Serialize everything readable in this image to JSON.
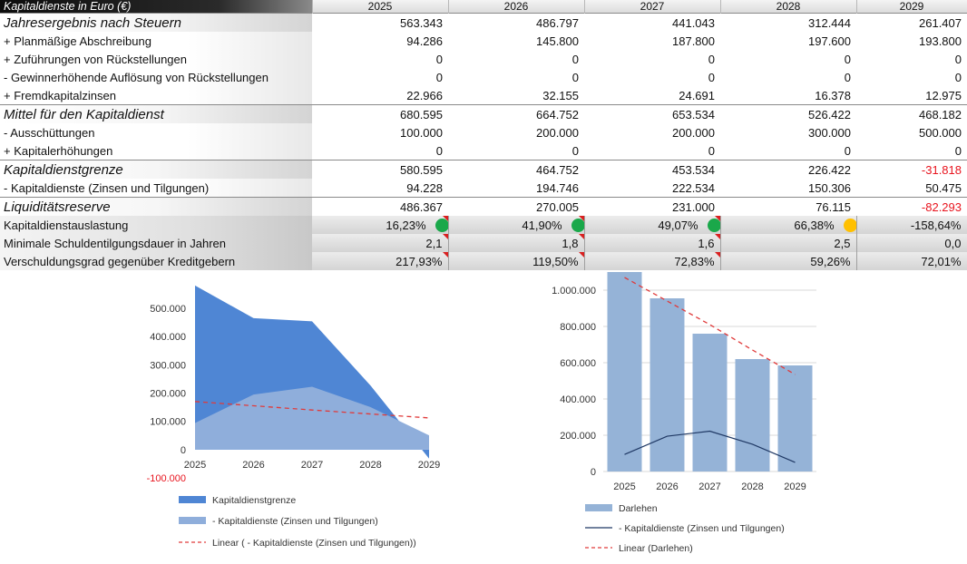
{
  "table": {
    "title": "Kapitaldienste in Euro (€)",
    "years": [
      "2025",
      "2026",
      "2027",
      "2028",
      "2029"
    ],
    "rows": [
      {
        "label": "Jahresergebnis nach Steuern",
        "values": [
          "563.343",
          "486.797",
          "441.043",
          "312.444",
          "261.407"
        ],
        "style": "major"
      },
      {
        "label": " + Planmäßige Abschreibung",
        "values": [
          "94.286",
          "145.800",
          "187.800",
          "197.600",
          "193.800"
        ],
        "style": "sub"
      },
      {
        "label": " + Zuführungen von Rückstellungen",
        "values": [
          "0",
          "0",
          "0",
          "0",
          "0"
        ],
        "style": "sub"
      },
      {
        "label": " - Gewinnerhöhende Auflösung von Rückstellungen",
        "values": [
          "0",
          "0",
          "0",
          "0",
          "0"
        ],
        "style": "sub"
      },
      {
        "label": " + Fremdkapitalzinsen",
        "values": [
          "22.966",
          "32.155",
          "24.691",
          "16.378",
          "12.975"
        ],
        "style": "sub"
      },
      {
        "label": "Mittel für den Kapitaldienst",
        "values": [
          "680.595",
          "664.752",
          "653.534",
          "526.422",
          "468.182"
        ],
        "style": "major"
      },
      {
        "label": " - Ausschüttungen",
        "values": [
          "100.000",
          "200.000",
          "200.000",
          "300.000",
          "500.000"
        ],
        "style": "sub"
      },
      {
        "label": " + Kapitalerhöhungen",
        "values": [
          "0",
          "0",
          "0",
          "0",
          "0"
        ],
        "style": "sub"
      },
      {
        "label": "Kapitaldienstgrenze",
        "values": [
          "580.595",
          "464.752",
          "453.534",
          "226.422",
          "-31.818"
        ],
        "style": "major",
        "negIdx": [
          4
        ]
      },
      {
        "label": " - Kapitaldienste (Zinsen und Tilgungen)",
        "values": [
          "94.228",
          "194.746",
          "222.534",
          "150.306",
          "50.475"
        ],
        "style": "sub"
      },
      {
        "label": "Liquiditätsreserve",
        "values": [
          "486.367",
          "270.005",
          "231.000",
          "76.115",
          "-82.293"
        ],
        "style": "major",
        "negIdx": [
          4
        ]
      },
      {
        "label": "Kapitaldienstauslastung",
        "values": [
          "16,23%",
          "41,90%",
          "49,07%",
          "66,38%",
          "-158,64%"
        ],
        "style": "shade",
        "dots": [
          "#1aa84a",
          "#1aa84a",
          "#1aa84a",
          "#ffc000",
          ""
        ],
        "flag": true
      },
      {
        "label": "Minimale Schuldentilgungsdauer in Jahren",
        "values": [
          "2,1",
          "1,8",
          "1,6",
          "2,5",
          "0,0"
        ],
        "style": "shade",
        "flag": true
      },
      {
        "label": "Verschuldungsgrad gegenüber Kreditgebern",
        "values": [
          "217,93%",
          "119,50%",
          "72,83%",
          "59,26%",
          "72,01%"
        ],
        "style": "shade",
        "flag": true
      }
    ]
  },
  "chart_data": [
    {
      "type": "area",
      "categories": [
        "2025",
        "2026",
        "2027",
        "2028",
        "2029"
      ],
      "series": [
        {
          "name": "Kapitaldienstgrenze",
          "values": [
            580595,
            464752,
            453534,
            226422,
            -31818
          ],
          "color": "#4f86d4"
        },
        {
          "name": " - Kapitaldienste (Zinsen und Tilgungen)",
          "values": [
            94228,
            194746,
            222534,
            150306,
            50475
          ],
          "color": "#8faedb"
        },
        {
          "name": "Linear ( - Kapitaldienste (Zinsen und Tilgungen))",
          "values": [
            170000,
            155000,
            140000,
            126000,
            112000
          ],
          "color": "#e03a3a",
          "style": "dashed"
        }
      ],
      "yticks": [
        "500.000",
        "400.000",
        "300.000",
        "200.000",
        "100.000",
        "0",
        "-100.000"
      ],
      "ylim": [
        -100000,
        580000
      ],
      "grid": false,
      "legend": "bottom"
    },
    {
      "type": "bar",
      "categories": [
        "2025",
        "2026",
        "2027",
        "2028",
        "2029"
      ],
      "series": [
        {
          "name": "Darlehen",
          "values": [
            1100000,
            955000,
            760000,
            620000,
            585000
          ],
          "color": "#95b3d7"
        },
        {
          "name": " - Kapitaldienste (Zinsen und Tilgungen)",
          "values": [
            94228,
            194746,
            222534,
            150306,
            50475
          ],
          "color": "#1f3864"
        },
        {
          "name": "Linear (Darlehen)",
          "values": [
            1070000,
            940000,
            810000,
            670000,
            535000
          ],
          "color": "#e03a3a",
          "style": "dashed"
        }
      ],
      "yticks": [
        "1.000.000",
        "800.000",
        "600.000",
        "400.000",
        "200.000",
        "0"
      ],
      "ylim": [
        0,
        1100000
      ],
      "grid": true,
      "legend": "bottom"
    }
  ]
}
